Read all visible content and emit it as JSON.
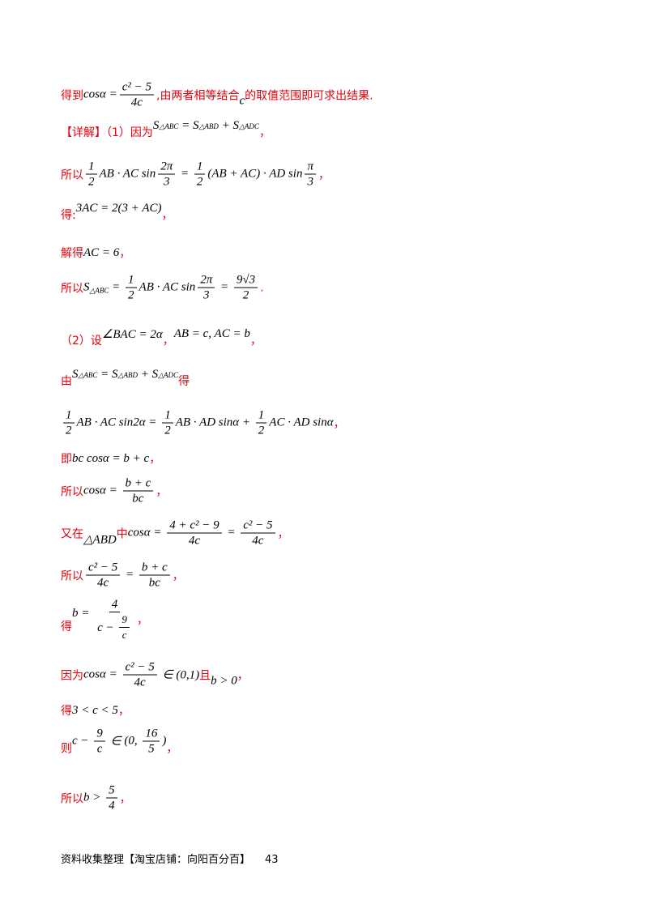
{
  "lines": [
    [
      "得到",
      "cosα =",
      "c² − 5",
      "4c",
      ",由两者相等结合",
      "c",
      "的取值范围即可求出结果."
    ],
    [
      "【详解】（1）因为",
      "S",
      "△ABC",
      " = S",
      "△ABD",
      " + S",
      "△ADC",
      "，"
    ],
    [
      "所以",
      "1",
      "2",
      "AB · AC sin",
      "2π",
      "3",
      " = ",
      "1",
      "2",
      "(AB + AC) · AD sin",
      "π",
      "3",
      "，"
    ],
    [
      "得:",
      "3AC = 2(3 + AC)",
      "，"
    ],
    [
      "解得",
      "AC = 6",
      "，"
    ],
    [
      "所以",
      "S",
      "△ABC",
      " = ",
      "1",
      "2",
      "AB · AC sin",
      "2π",
      "3",
      " = ",
      "9√3",
      "2",
      "."
    ],
    [
      "（2）设",
      "∠BAC = 2α",
      "，",
      "AB = c, AC = b",
      "，"
    ],
    [
      "由",
      "S",
      "△ABC",
      " = S",
      "△ABD",
      " + S",
      "△ADC",
      "得"
    ],
    [
      "1",
      "2",
      "AB · AC sin2α = ",
      "1",
      "2",
      "AB · AD sinα + ",
      "1",
      "2",
      "AC · AD sinα",
      "，"
    ],
    [
      "即",
      "bc cosα = b + c",
      "，"
    ],
    [
      "所以",
      "cosα = ",
      "b + c",
      "bc",
      "，"
    ],
    [
      "又在",
      "△ABD",
      "中",
      "cosα = ",
      "4 + c² − 9",
      "4c",
      " = ",
      "c² − 5",
      "4c",
      "，"
    ],
    [
      "所以",
      "c² − 5",
      "4c",
      " = ",
      "b + c",
      "bc",
      "，"
    ],
    [
      "得",
      "b = ",
      "4",
      "c − ",
      "9",
      "c",
      "，"
    ],
    [
      "因为",
      "cosα = ",
      "c² − 5",
      "4c",
      " ∈ (0,1)",
      "且",
      "b > 0",
      "，"
    ],
    [
      "得",
      "3 < c < 5",
      "，"
    ],
    [
      "则",
      "c − ",
      "9",
      "c",
      " ∈ ",
      "(0, ",
      "16",
      "5",
      ")",
      "，"
    ],
    [
      "所以",
      "b > ",
      "5",
      "4",
      "，"
    ]
  ],
  "footer": {
    "text": "资料收集整理【淘宝店铺：向阳百分百】",
    "page": "43"
  }
}
